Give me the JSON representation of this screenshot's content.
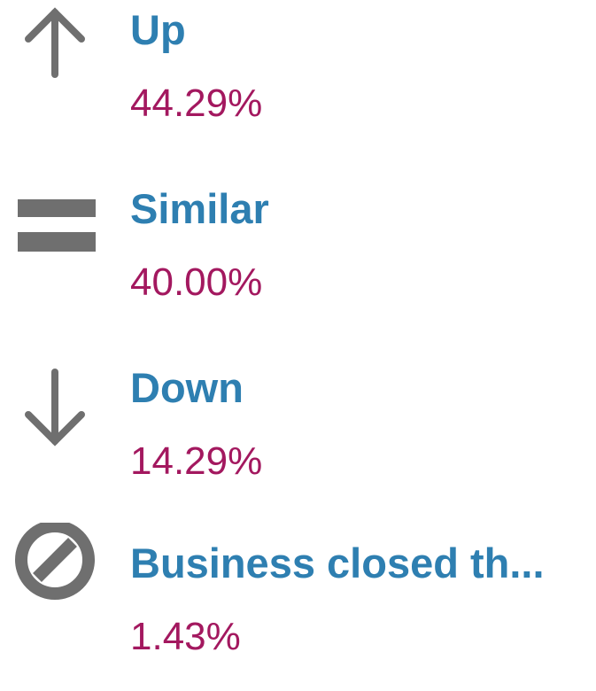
{
  "items": [
    {
      "label": "Up",
      "value": "44.29%"
    },
    {
      "label": "Similar",
      "value": "40.00%"
    },
    {
      "label": "Down",
      "value": "14.29%"
    },
    {
      "label": "Business closed th...",
      "value": "1.43%"
    }
  ]
}
